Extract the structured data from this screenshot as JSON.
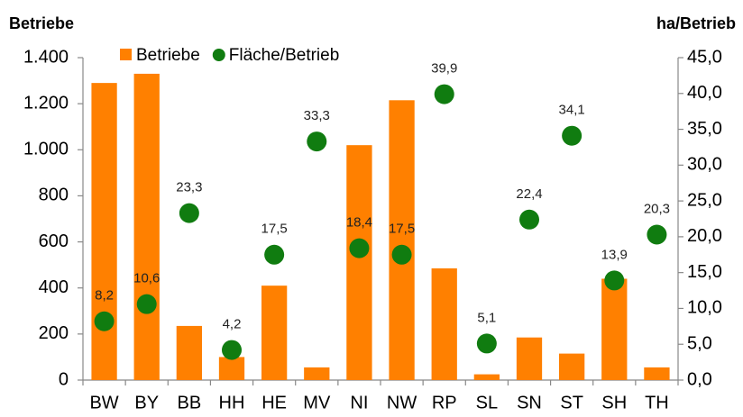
{
  "chart_data": {
    "type": "bar_dot",
    "y_label": "Betriebe",
    "y2_label": "ha/Betrieb",
    "categories": [
      "BW",
      "BY",
      "BB",
      "HH",
      "HE",
      "MV",
      "NI",
      "NW",
      "RP",
      "SL",
      "SN",
      "ST",
      "SH",
      "TH"
    ],
    "series": [
      {
        "name": "Betriebe",
        "color": "#ff8000",
        "type": "bar",
        "values": [
          1290,
          1330,
          235,
          100,
          410,
          55,
          1020,
          1215,
          485,
          25,
          185,
          115,
          440,
          55
        ]
      },
      {
        "name": "Fläche/Betrieb",
        "color": "#107c10",
        "type": "dot",
        "axis": "y2",
        "values": [
          8.2,
          10.6,
          23.3,
          4.2,
          17.5,
          33.3,
          18.4,
          17.5,
          39.9,
          5.1,
          22.4,
          34.1,
          13.9,
          20.3
        ],
        "value_labels": [
          "8,2",
          "10,6",
          "23,3",
          "4,2",
          "17,5",
          "33,3",
          "18,4",
          "17,5",
          "39,9",
          "5,1",
          "22,4",
          "34,1",
          "13,9",
          "20,3"
        ]
      }
    ],
    "ylim": [
      0,
      1400
    ],
    "yticks": [
      0,
      200,
      400,
      600,
      800,
      {
        "value": 1000,
        "label": "1.000"
      },
      {
        "value": 1200,
        "label": "1.200"
      },
      {
        "value": 1400,
        "label": "1.400"
      }
    ],
    "y2lim": [
      0,
      45
    ],
    "y2ticks": [
      {
        "value": 0,
        "label": "0,0"
      },
      {
        "value": 5,
        "label": "5,0"
      },
      {
        "value": 10,
        "label": "10,0"
      },
      {
        "value": 15,
        "label": "15,0"
      },
      {
        "value": 20,
        "label": "20,0"
      },
      {
        "value": 25,
        "label": "25,0"
      },
      {
        "value": 30,
        "label": "30,0"
      },
      {
        "value": 35,
        "label": "35,0"
      },
      {
        "value": 40,
        "label": "40,0"
      },
      {
        "value": 45,
        "label": "45,0"
      }
    ],
    "legend": "top",
    "grid": false
  }
}
